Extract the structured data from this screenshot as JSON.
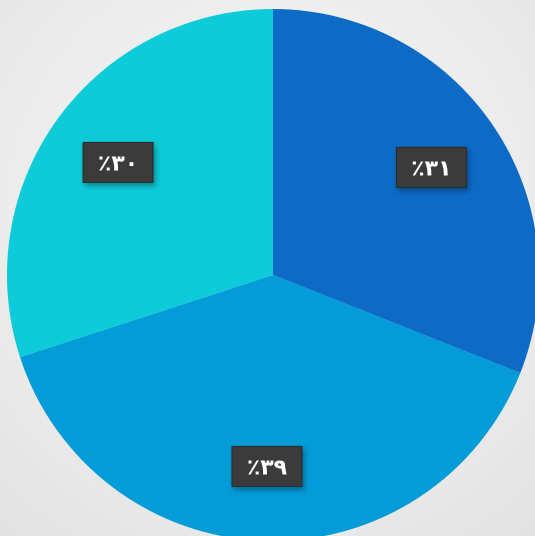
{
  "chart_data": {
    "type": "pie",
    "values": [
      31,
      39,
      30
    ],
    "data_labels": [
      "٪۳۱",
      "٪۳۹",
      "٪۳۰"
    ],
    "colors": [
      "#0d6bc6",
      "#039bd8",
      "#0dcbd8"
    ],
    "start_angle_deg": 0,
    "direction": "clockwise"
  }
}
